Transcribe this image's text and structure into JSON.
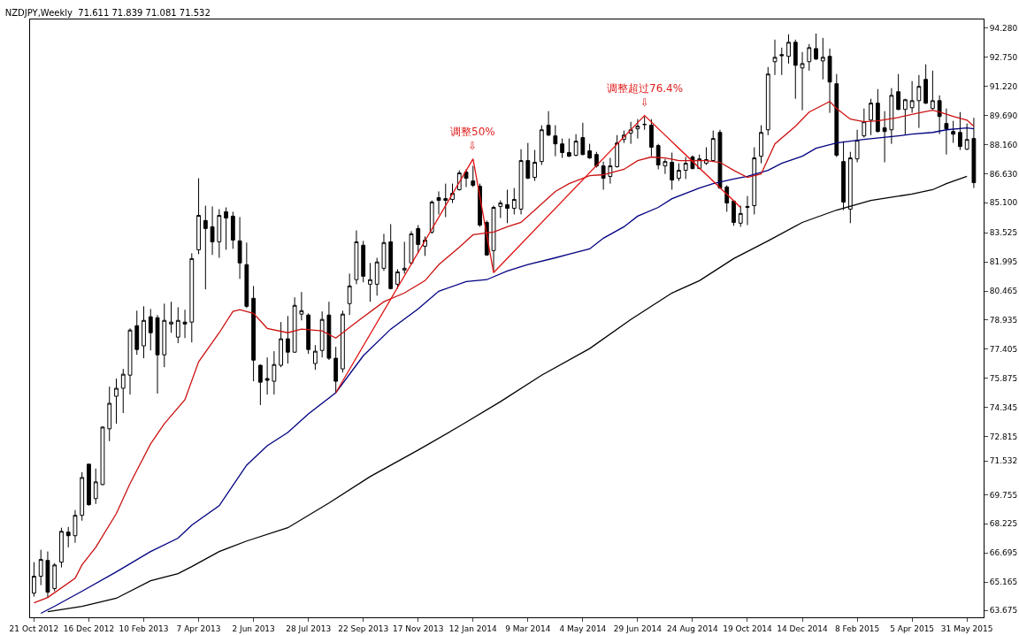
{
  "chart_data": {
    "type": "candlestick",
    "title": "NZDJPY,Weekly  71.611 71.839 71.081 71.532",
    "x": [
      "2012-10-21",
      "2012-10-28",
      "2012-11-04",
      "2012-11-11",
      "2012-11-18",
      "2012-11-25",
      "2012-12-02",
      "2012-12-09",
      "2012-12-16",
      "2012-12-23",
      "2012-12-30",
      "2013-01-06",
      "2013-01-13",
      "2013-01-20",
      "2013-01-27",
      "2013-02-03",
      "2013-02-10",
      "2013-02-17",
      "2013-02-24",
      "2013-03-03",
      "2013-03-10",
      "2013-03-17",
      "2013-03-24",
      "2013-03-31",
      "2013-04-07",
      "2013-04-14",
      "2013-04-21",
      "2013-04-28",
      "2013-05-05",
      "2013-05-12",
      "2013-05-19",
      "2013-05-26",
      "2013-06-02",
      "2013-06-09",
      "2013-06-16",
      "2013-06-23",
      "2013-06-30",
      "2013-07-07",
      "2013-07-14",
      "2013-07-21",
      "2013-07-28",
      "2013-08-04",
      "2013-08-11",
      "2013-08-18",
      "2013-08-25",
      "2013-09-01",
      "2013-09-08",
      "2013-09-15",
      "2013-09-22",
      "2013-09-29",
      "2013-10-06",
      "2013-10-13",
      "2013-10-20",
      "2013-10-27",
      "2013-11-03",
      "2013-11-10",
      "2013-11-17",
      "2013-11-24",
      "2013-12-01",
      "2013-12-08",
      "2013-12-15",
      "2013-12-22",
      "2013-12-29",
      "2014-01-05",
      "2014-01-12",
      "2014-01-19",
      "2014-01-26",
      "2014-02-02",
      "2014-02-09",
      "2014-02-16",
      "2014-02-23",
      "2014-03-02",
      "2014-03-09",
      "2014-03-16",
      "2014-03-23",
      "2014-03-30",
      "2014-04-06",
      "2014-04-13",
      "2014-04-20",
      "2014-04-27",
      "2014-05-04",
      "2014-05-11",
      "2014-05-18",
      "2014-05-25",
      "2014-06-01",
      "2014-06-08",
      "2014-06-15",
      "2014-06-22",
      "2014-06-29",
      "2014-07-06",
      "2014-07-13",
      "2014-07-20",
      "2014-07-27",
      "2014-08-03",
      "2014-08-10",
      "2014-08-17",
      "2014-08-24",
      "2014-08-31",
      "2014-09-07",
      "2014-09-14",
      "2014-09-21",
      "2014-09-28",
      "2014-10-05",
      "2014-10-12",
      "2014-10-19",
      "2014-10-26",
      "2014-11-02",
      "2014-11-09",
      "2014-11-16",
      "2014-11-23",
      "2014-11-30",
      "2014-12-07",
      "2014-12-14",
      "2014-12-21",
      "2014-12-28",
      "2015-01-04",
      "2015-01-11",
      "2015-01-18",
      "2015-01-25",
      "2015-02-01",
      "2015-02-08",
      "2015-02-15",
      "2015-02-22",
      "2015-03-01",
      "2015-03-08",
      "2015-03-15",
      "2015-03-22",
      "2015-03-29",
      "2015-04-05",
      "2015-04-12",
      "2015-04-19",
      "2015-04-26",
      "2015-05-03",
      "2015-05-10",
      "2015-05-17",
      "2015-05-24",
      "2015-05-31",
      "2015-06-07"
    ],
    "ohlc": [
      [
        64.58,
        66.21,
        64.4,
        65.47
      ],
      [
        65.47,
        66.86,
        65.0,
        66.35
      ],
      [
        66.3,
        66.77,
        64.35,
        64.63
      ],
      [
        64.82,
        66.16,
        64.68,
        66.06
      ],
      [
        66.21,
        68.02,
        65.93,
        67.83
      ],
      [
        67.79,
        68.06,
        66.99,
        67.6
      ],
      [
        67.6,
        68.95,
        67.23,
        68.67
      ],
      [
        68.67,
        70.94,
        68.39,
        70.66
      ],
      [
        71.36,
        71.36,
        69.18,
        69.23
      ],
      [
        69.55,
        71.13,
        69.27,
        70.43
      ],
      [
        70.29,
        73.35,
        70.25,
        73.31
      ],
      [
        73.22,
        75.44,
        72.57,
        74.56
      ],
      [
        74.93,
        75.86,
        73.49,
        75.35
      ],
      [
        75.35,
        76.37,
        74.05,
        76.09
      ],
      [
        76.04,
        78.5,
        75.02,
        78.41
      ],
      [
        78.64,
        79.43,
        77.11,
        77.39
      ],
      [
        77.58,
        79.66,
        76.93,
        78.92
      ],
      [
        79.11,
        79.52,
        77.34,
        78.27
      ],
      [
        79.06,
        79.2,
        75.07,
        77.11
      ],
      [
        77.11,
        79.8,
        76.46,
        78.92
      ],
      [
        78.73,
        79.9,
        78.27,
        78.83
      ],
      [
        78.04,
        79.61,
        77.72,
        78.92
      ],
      [
        78.83,
        79.48,
        77.99,
        78.73
      ],
      [
        78.83,
        82.45,
        77.76,
        82.17
      ],
      [
        82.63,
        86.39,
        82.4,
        84.44
      ],
      [
        84.17,
        84.95,
        80.55,
        83.75
      ],
      [
        83.84,
        84.91,
        82.36,
        83.05
      ],
      [
        83.05,
        84.77,
        82.21,
        84.44
      ],
      [
        84.63,
        84.86,
        82.63,
        84.3
      ],
      [
        84.4,
        84.63,
        82.68,
        83.14
      ],
      [
        83.1,
        84.35,
        81.1,
        81.94
      ],
      [
        81.85,
        83.01,
        79.57,
        79.66
      ],
      [
        80.08,
        80.73,
        75.72,
        76.83
      ],
      [
        76.56,
        76.6,
        74.47,
        75.67
      ],
      [
        75.86,
        76.97,
        75.02,
        75.77
      ],
      [
        75.72,
        77.3,
        75.02,
        76.6
      ],
      [
        76.56,
        78.83,
        76.46,
        77.95
      ],
      [
        77.95,
        79.15,
        76.65,
        77.25
      ],
      [
        77.25,
        80.13,
        77.21,
        79.71
      ],
      [
        79.25,
        80.41,
        78.92,
        79.43
      ],
      [
        79.2,
        79.29,
        77.16,
        77.39
      ],
      [
        76.65,
        77.62,
        76.32,
        77.3
      ],
      [
        77.34,
        79.39,
        76.97,
        78.97
      ],
      [
        79.2,
        79.9,
        76.84,
        76.93
      ],
      [
        76.93,
        77.53,
        75.12,
        75.72
      ],
      [
        76.37,
        79.43,
        76.18,
        79.25
      ],
      [
        79.8,
        81.38,
        79.2,
        80.73
      ],
      [
        81.06,
        83.65,
        80.82,
        83.05
      ],
      [
        82.87,
        83.1,
        80.92,
        81.24
      ],
      [
        80.82,
        81.94,
        79.9,
        81.06
      ],
      [
        80.82,
        82.21,
        80.22,
        81.99
      ],
      [
        81.66,
        83.47,
        81.52,
        83.01
      ],
      [
        83.05,
        83.98,
        80.55,
        80.59
      ],
      [
        80.82,
        81.61,
        80.59,
        81.47
      ],
      [
        81.57,
        83.05,
        81.38,
        81.66
      ],
      [
        81.94,
        83.61,
        81.85,
        83.47
      ],
      [
        83.75,
        83.93,
        82.45,
        82.91
      ],
      [
        82.82,
        83.33,
        82.31,
        83.14
      ],
      [
        83.56,
        85.23,
        83.47,
        85.14
      ],
      [
        85.37,
        85.7,
        84.49,
        85.23
      ],
      [
        85.32,
        86.11,
        84.35,
        85.23
      ],
      [
        85.28,
        86.11,
        85.09,
        85.6
      ],
      [
        85.79,
        86.81,
        85.74,
        86.67
      ],
      [
        86.72,
        86.86,
        85.93,
        86.39
      ],
      [
        86.25,
        87.04,
        85.93,
        86.02
      ],
      [
        85.97,
        86.11,
        83.84,
        83.93
      ],
      [
        84.07,
        84.17,
        82.31,
        82.36
      ],
      [
        82.59,
        84.95,
        81.52,
        84.86
      ],
      [
        84.91,
        85.23,
        84.3,
        85.09
      ],
      [
        85.0,
        85.79,
        84.03,
        84.81
      ],
      [
        84.81,
        85.88,
        84.49,
        85.28
      ],
      [
        84.77,
        87.92,
        84.49,
        87.32
      ],
      [
        87.32,
        88.25,
        86.35,
        86.39
      ],
      [
        86.44,
        87.88,
        86.25,
        87.23
      ],
      [
        87.27,
        89.18,
        87.09,
        88.94
      ],
      [
        89.18,
        89.92,
        88.62,
        88.66
      ],
      [
        88.62,
        89.18,
        87.55,
        88.2
      ],
      [
        88.2,
        88.48,
        87.46,
        87.74
      ],
      [
        87.74,
        88.48,
        87.51,
        87.55
      ],
      [
        87.6,
        88.71,
        87.55,
        88.34
      ],
      [
        88.53,
        89.31,
        87.6,
        87.64
      ],
      [
        87.83,
        88.2,
        87.41,
        87.46
      ],
      [
        87.64,
        87.78,
        86.95,
        87.04
      ],
      [
        87.04,
        87.27,
        85.79,
        86.39
      ],
      [
        86.49,
        87.46,
        86.11,
        87.04
      ],
      [
        87.0,
        88.66,
        86.95,
        88.25
      ],
      [
        88.43,
        88.9,
        88.25,
        88.66
      ],
      [
        88.76,
        89.36,
        88.2,
        88.94
      ],
      [
        88.99,
        89.5,
        88.48,
        89.13
      ],
      [
        89.22,
        89.64,
        88.94,
        89.22
      ],
      [
        89.18,
        89.5,
        87.55,
        88.02
      ],
      [
        88.11,
        88.2,
        86.86,
        87.09
      ],
      [
        87.04,
        87.41,
        86.62,
        87.27
      ],
      [
        87.23,
        87.74,
        85.79,
        86.3
      ],
      [
        86.39,
        87.18,
        86.25,
        86.81
      ],
      [
        86.81,
        87.51,
        86.35,
        87.18
      ],
      [
        87.51,
        87.6,
        86.86,
        86.9
      ],
      [
        86.9,
        87.64,
        86.9,
        87.41
      ],
      [
        87.18,
        88.02,
        87.09,
        87.37
      ],
      [
        87.32,
        88.9,
        87.27,
        88.48
      ],
      [
        88.8,
        88.94,
        85.84,
        85.88
      ],
      [
        85.93,
        86.02,
        84.63,
        85.09
      ],
      [
        85.19,
        85.23,
        83.89,
        84.07
      ],
      [
        84.03,
        84.95,
        83.84,
        84.54
      ],
      [
        84.86,
        85.46,
        83.93,
        84.91
      ],
      [
        84.95,
        88.02,
        84.49,
        87.46
      ],
      [
        87.55,
        89.18,
        87.18,
        88.8
      ],
      [
        88.94,
        92.24,
        88.66,
        91.87
      ],
      [
        92.52,
        93.68,
        91.82,
        92.75
      ],
      [
        92.89,
        93.26,
        91.82,
        92.84
      ],
      [
        92.8,
        93.96,
        92.42,
        93.54
      ],
      [
        93.54,
        93.68,
        90.57,
        92.33
      ],
      [
        92.19,
        93.03,
        89.97,
        92.42
      ],
      [
        92.52,
        93.45,
        92.05,
        93.26
      ],
      [
        93.21,
        94.0,
        92.61,
        92.66
      ],
      [
        92.56,
        93.77,
        91.59,
        92.75
      ],
      [
        92.8,
        93.21,
        89.83,
        91.45
      ],
      [
        91.36,
        91.87,
        87.51,
        87.6
      ],
      [
        87.27,
        88.34,
        84.72,
        85.14
      ],
      [
        84.77,
        87.78,
        84.03,
        87.46
      ],
      [
        87.41,
        88.94,
        87.23,
        88.39
      ],
      [
        88.62,
        90.06,
        88.53,
        89.36
      ],
      [
        89.45,
        90.57,
        88.66,
        90.34
      ],
      [
        90.34,
        91.08,
        88.8,
        88.85
      ],
      [
        89.04,
        89.92,
        87.23,
        88.85
      ],
      [
        88.94,
        91.13,
        88.2,
        90.75
      ],
      [
        90.94,
        91.87,
        89.97,
        90.01
      ],
      [
        90.01,
        90.57,
        88.66,
        90.52
      ],
      [
        90.1,
        91.5,
        89.83,
        90.47
      ],
      [
        90.47,
        91.82,
        89.04,
        91.22
      ],
      [
        91.59,
        92.38,
        90.29,
        90.34
      ],
      [
        90.06,
        92.05,
        90.01,
        90.47
      ],
      [
        90.47,
        90.75,
        88.71,
        89.64
      ],
      [
        89.27,
        90.06,
        87.64,
        88.99
      ],
      [
        88.85,
        89.41,
        88.25,
        88.71
      ],
      [
        88.8,
        89.87,
        87.88,
        88.06
      ],
      [
        87.92,
        89.27,
        87.88,
        88.43
      ],
      [
        88.48,
        89.57,
        85.88,
        86.16
      ]
    ],
    "series": [
      {
        "type": "line",
        "color": "#000000",
        "x": [
          "2012-11-04",
          "2012-12-09",
          "2013-01-13",
          "2013-02-17",
          "2013-03-17",
          "2013-03-31",
          "2013-04-28",
          "2013-05-26",
          "2013-07-07",
          "2013-08-18",
          "2013-09-29",
          "2013-11-17",
          "2013-12-29",
          "2014-02-09",
          "2014-03-23",
          "2014-05-11",
          "2014-06-22",
          "2014-08-03",
          "2014-08-31",
          "2014-10-05",
          "2014-11-09",
          "2014-12-14",
          "2015-01-18",
          "2015-02-22",
          "2015-04-05",
          "2015-04-26",
          "2015-05-10",
          "2015-05-31"
        ],
        "values": [
          63.61,
          63.89,
          64.31,
          65.23,
          65.61,
          65.98,
          66.77,
          67.32,
          68.02,
          69.32,
          70.71,
          72.1,
          73.35,
          74.65,
          76.04,
          77.44,
          78.97,
          80.36,
          81.01,
          82.17,
          83.1,
          84.07,
          84.72,
          85.23,
          85.56,
          85.79,
          86.11,
          86.49
        ]
      },
      {
        "type": "line",
        "color": "#000080",
        "x": [
          "2012-10-28",
          "2012-11-11",
          "2012-12-09",
          "2013-01-13",
          "2013-02-17",
          "2013-03-17",
          "2013-03-31",
          "2013-04-28",
          "2013-05-26",
          "2013-06-16",
          "2013-07-07",
          "2013-07-28",
          "2013-08-25",
          "2013-09-22",
          "2013-10-20",
          "2013-11-17",
          "2013-12-08",
          "2014-01-05",
          "2014-01-26",
          "2014-02-16",
          "2014-03-09",
          "2014-04-06",
          "2014-04-20",
          "2014-05-11",
          "2014-05-25",
          "2014-06-15",
          "2014-06-29",
          "2014-07-20",
          "2014-08-03",
          "2014-08-31",
          "2014-09-14",
          "2014-10-05",
          "2014-10-19",
          "2014-11-09",
          "2014-11-23",
          "2014-12-14",
          "2014-12-28",
          "2015-01-18",
          "2015-02-15",
          "2015-03-22",
          "2015-04-05",
          "2015-04-26",
          "2015-05-10",
          "2015-05-31",
          "2015-06-07"
        ],
        "values": [
          63.52,
          63.89,
          64.68,
          65.7,
          66.77,
          67.47,
          68.16,
          69.18,
          71.31,
          72.33,
          73.03,
          74.0,
          75.12,
          77.06,
          78.46,
          79.52,
          80.45,
          80.96,
          81.06,
          81.52,
          81.85,
          82.21,
          82.4,
          82.68,
          83.24,
          83.84,
          84.4,
          84.86,
          85.32,
          85.88,
          86.11,
          86.35,
          86.49,
          86.81,
          87.18,
          87.55,
          87.97,
          88.25,
          88.43,
          88.62,
          88.71,
          88.8,
          88.94,
          89.04,
          88.99
        ]
      },
      {
        "type": "line",
        "color": "#cc1111",
        "x": [
          "2012-10-21",
          "2012-11-04",
          "2012-12-02",
          "2012-12-09",
          "2012-12-23",
          "2013-01-13",
          "2013-01-27",
          "2013-02-17",
          "2013-03-03",
          "2013-03-24",
          "2013-04-07",
          "2013-04-28",
          "2013-05-12",
          "2013-05-19",
          "2013-06-02",
          "2013-06-16",
          "2013-07-07",
          "2013-07-21",
          "2013-08-11",
          "2013-08-25",
          "2013-09-15",
          "2013-10-13",
          "2013-11-03",
          "2013-11-24",
          "2013-12-08",
          "2013-12-29",
          "2014-01-12",
          "2014-02-02",
          "2014-02-16",
          "2014-03-02",
          "2014-03-16",
          "2014-04-06",
          "2014-04-20",
          "2014-05-11",
          "2014-05-25",
          "2014-06-15",
          "2014-06-29",
          "2014-07-13",
          "2014-07-27",
          "2014-08-10",
          "2014-09-07",
          "2014-09-21",
          "2014-10-05",
          "2014-10-19",
          "2014-11-02",
          "2014-11-16",
          "2014-12-07",
          "2014-12-21",
          "2015-01-11",
          "2015-01-18",
          "2015-02-01",
          "2015-02-15",
          "2015-03-01",
          "2015-03-22",
          "2015-04-12",
          "2015-04-26",
          "2015-05-03",
          "2015-05-17",
          "2015-05-31",
          "2015-06-07"
        ],
        "values": [
          64.07,
          64.35,
          65.37,
          66.07,
          66.99,
          68.76,
          70.34,
          72.43,
          73.49,
          74.75,
          76.74,
          78.27,
          79.39,
          79.48,
          79.29,
          78.5,
          78.27,
          78.46,
          78.37,
          77.99,
          78.83,
          79.9,
          80.36,
          81.01,
          81.85,
          82.77,
          83.42,
          83.56,
          83.84,
          84.07,
          84.72,
          85.7,
          86.11,
          86.53,
          86.58,
          86.86,
          87.32,
          87.51,
          87.46,
          87.32,
          87.32,
          87.23,
          86.81,
          86.44,
          86.62,
          88.2,
          89.13,
          89.87,
          90.43,
          90.06,
          89.5,
          89.36,
          89.41,
          89.59,
          89.83,
          89.97,
          89.87,
          89.64,
          89.45,
          89.13
        ]
      },
      {
        "type": "line",
        "color": "#e01010",
        "x": [
          "2013-08-25",
          "2014-01-12",
          "2014-02-02",
          "2014-07-06",
          "2014-10-12"
        ],
        "values": [
          75.12,
          87.41,
          81.43,
          89.69,
          84.86
        ]
      }
    ],
    "annotations": [
      {
        "text": "调整50%\n⇩",
        "x": "2014-01-12",
        "y": 87.41
      },
      {
        "text": "调整超过76.4%\n⇩",
        "x": "2014-07-06",
        "y": 89.69
      }
    ],
    "xlim": [
      "2012-10-17",
      "2015-06-17"
    ],
    "xticks": [
      {
        "value": "2012-10-21",
        "label": "21 Oct 2012"
      },
      {
        "value": "2012-12-16",
        "label": "16 Dec 2012"
      },
      {
        "value": "2013-02-10",
        "label": "10 Feb 2013"
      },
      {
        "value": "2013-04-07",
        "label": "7 Apr 2013"
      },
      {
        "value": "2013-06-02",
        "label": "2 Jun 2013"
      },
      {
        "value": "2013-07-28",
        "label": "28 Jul 2013"
      },
      {
        "value": "2013-09-22",
        "label": "22 Sep 2013"
      },
      {
        "value": "2013-11-17",
        "label": "17 Nov 2013"
      },
      {
        "value": "2014-01-12",
        "label": "12 Jan 2014"
      },
      {
        "value": "2014-03-09",
        "label": "9 Mar 2014"
      },
      {
        "value": "2014-05-04",
        "label": "4 May 2014"
      },
      {
        "value": "2014-06-29",
        "label": "29 Jun 2014"
      },
      {
        "value": "2014-08-24",
        "label": "24 Aug 2014"
      },
      {
        "value": "2014-10-19",
        "label": "19 Oct 2014"
      },
      {
        "value": "2014-12-14",
        "label": "14 Dec 2014"
      },
      {
        "value": "2015-02-08",
        "label": "8 Feb 2015"
      },
      {
        "value": "2015-04-05",
        "label": "5 Apr 2015"
      },
      {
        "value": "2015-05-31",
        "label": "31 May 2015"
      }
    ],
    "ylim": [
      63.31,
      94.74
    ],
    "yticks": [
      {
        "value": 94.28,
        "label": "94.280"
      },
      {
        "value": 92.75,
        "label": "92.750"
      },
      {
        "value": 91.22,
        "label": "91.220"
      },
      {
        "value": 89.69,
        "label": "89.690"
      },
      {
        "value": 88.16,
        "label": "88.160"
      },
      {
        "value": 86.63,
        "label": "86.630"
      },
      {
        "value": 85.1,
        "label": "85.100"
      },
      {
        "value": 83.525,
        "label": "83.525"
      },
      {
        "value": 81.995,
        "label": "81.995"
      },
      {
        "value": 80.465,
        "label": "80.465"
      },
      {
        "value": 78.935,
        "label": "78.935"
      },
      {
        "value": 77.405,
        "label": "77.405"
      },
      {
        "value": 75.875,
        "label": "75.875"
      },
      {
        "value": 74.345,
        "label": "74.345"
      },
      {
        "value": 72.815,
        "label": "72.815"
      },
      {
        "value": 71.532,
        "label": "71.532"
      },
      {
        "value": 69.755,
        "label": "69.755"
      },
      {
        "value": 68.225,
        "label": "68.225"
      },
      {
        "value": 66.695,
        "label": "66.695"
      },
      {
        "value": 65.165,
        "label": "65.165"
      },
      {
        "value": 63.675,
        "label": "63.675"
      }
    ]
  }
}
